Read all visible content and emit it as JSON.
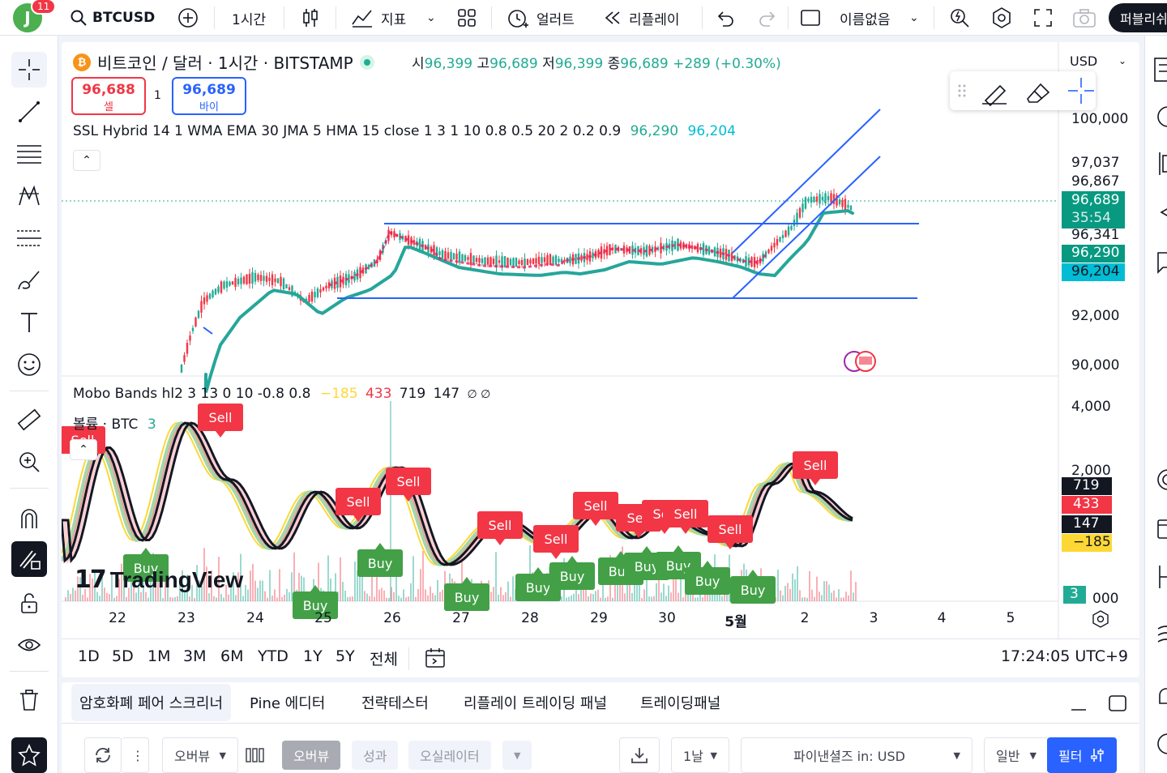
{
  "topbar": {
    "avatar_letter": "J",
    "notification_count": "11",
    "symbol": "BTCUSD",
    "interval": "1시간",
    "indicators_label": "지표",
    "alert_label": "얼러트",
    "replay_label": "리플레이",
    "layout_name": "이름없음",
    "publish_label": "퍼블리쉬"
  },
  "legend": {
    "title": "비트코인 / 달러 · 1시간 · BITSTAMP",
    "o_key": "시",
    "o_val": "96,399",
    "h_key": "고",
    "h_val": "96,689",
    "l_key": "저",
    "l_val": "96,399",
    "c_key": "종",
    "c_val": "96,689",
    "change": "+289 (+0.30%)",
    "sell_price": "96,688",
    "sell_label": "셀",
    "spread": "1",
    "buy_price": "96,689",
    "buy_label": "바이"
  },
  "indicator1": {
    "label": "SSL Hybrid 14 1 WMA EMA 30 JMA 5 HMA 15 close 1 3 1 10 0.8 0.5 20 2 0.2 0.9",
    "val1": "96,290",
    "val2": "96,204"
  },
  "indicator2": {
    "label": "Mobo Bands hl2 3 13 0 10 -0.8 0.8",
    "v1": "−185",
    "v2": "433",
    "v3": "719",
    "v4": "147",
    "v5": "∅ ∅"
  },
  "volume": {
    "label": "볼륨 · BTC",
    "value": "3"
  },
  "currency": "USD",
  "price_axis": [
    "100,000",
    "97,037",
    "96,867",
    "96,341",
    "92,000",
    "90,000"
  ],
  "price_tags": {
    "last": "96,689",
    "countdown": "35:54",
    "ssl1": "96,290",
    "ssl2": "96,204"
  },
  "osc_axis": [
    "4,000",
    "2,000",
    "000"
  ],
  "osc_tags": [
    "719",
    "433",
    "147",
    "−185",
    "3"
  ],
  "x_axis": [
    "22",
    "23",
    "24",
    "25",
    "26",
    "27",
    "28",
    "29",
    "30",
    "5월",
    "2",
    "3",
    "4",
    "5"
  ],
  "signals": {
    "sell": "Sell",
    "buy": "Buy"
  },
  "watermark": "TradingView",
  "ranges": [
    "1D",
    "5D",
    "1M",
    "3M",
    "6M",
    "YTD",
    "1Y",
    "5Y",
    "전체"
  ],
  "clock": "17:24:05 UTC+9",
  "bottom_tabs": [
    "암호화폐 페어 스크리너",
    "Pine 에디터",
    "전략테스터",
    "리플레이 트레이딩 패널",
    "트레이딩패널"
  ],
  "screener": {
    "view_select": "오버뷰",
    "tab_overview": "오버뷰",
    "tab_performance": "성과",
    "tab_oscillator": "오실레이터",
    "interval": "1날",
    "fundamentals": "파이낸셜즈 in: USD",
    "general": "일반",
    "filter": "필터"
  },
  "colors": {
    "up": "#22ab94",
    "down": "#f23645",
    "trend_line": "#2962ff",
    "ssl_baseline": "#26a69a",
    "yellow": "#fdd835"
  }
}
